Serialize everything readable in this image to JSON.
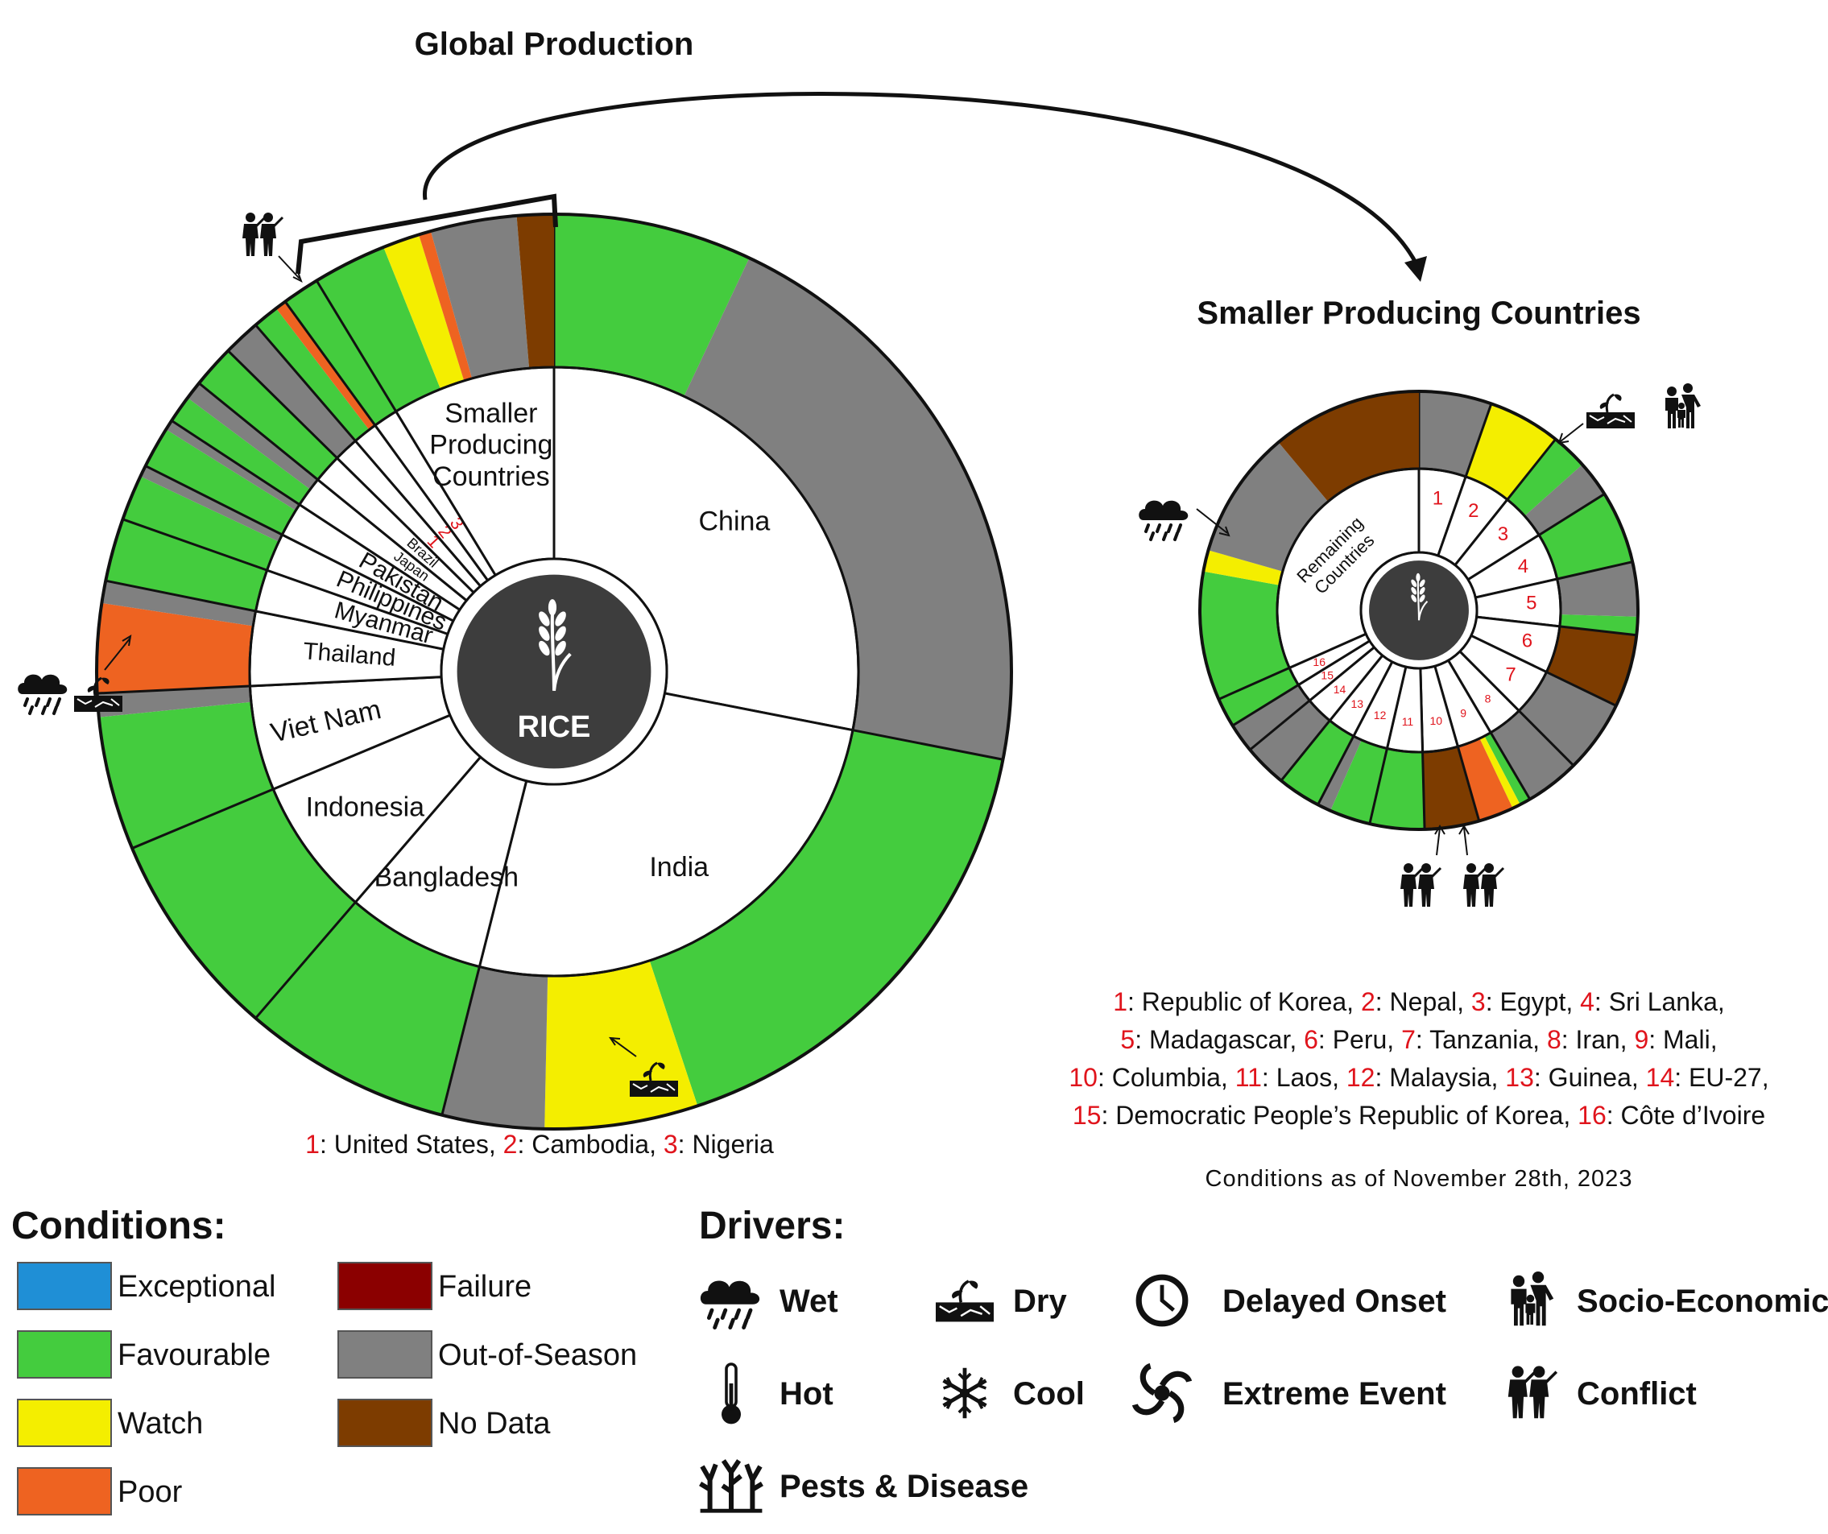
{
  "titles": {
    "global": "Global Production",
    "smaller": "Smaller Producing Countries",
    "center_label": "RICE",
    "date_note": "Conditions as of November 28th, 2023"
  },
  "colors": {
    "Exceptional": "#1f8fd6",
    "Favourable": "#44cc3e",
    "Watch": "#f4ee00",
    "Poor": "#ee6321",
    "Failure": "#8b0000",
    "Out-of-Season": "#808080",
    "No Data": "#7d3c00",
    "hub": "#3d3d3d"
  },
  "chart_data": [
    {
      "type": "pie",
      "name": "global",
      "segments": [
        {
          "label": "China",
          "share": 27.8,
          "conditions": [
            [
              "Favourable",
              0.25
            ],
            [
              "Out-of-Season",
              0.75
            ]
          ]
        },
        {
          "label": "India",
          "share": 25.6,
          "conditions": [
            [
              "Favourable",
              0.56
            ],
            [
              "Watch",
              0.18
            ],
            [
              "Out-of-Season",
              0.12
            ]
          ],
          "driver": "Dry"
        },
        {
          "label": "Bangladesh",
          "share": 7.3,
          "conditions": [
            [
              "Favourable",
              1.0
            ]
          ]
        },
        {
          "label": "Indonesia",
          "share": 7.3,
          "conditions": [
            [
              "Favourable",
              1.0
            ]
          ]
        },
        {
          "label": "Viet Nam",
          "share": 5.5,
          "conditions": [
            [
              "Favourable",
              0.85
            ],
            [
              "Out-of-Season",
              0.15
            ]
          ],
          "driver": "Wet, Dry"
        },
        {
          "label": "Thailand",
          "share": 3.9,
          "conditions": [
            [
              "Poor",
              0.8
            ],
            [
              "Out-of-Season",
              0.2
            ]
          ]
        },
        {
          "label": "Myanmar",
          "share": 2.2,
          "conditions": [
            [
              "Favourable",
              1.0
            ]
          ]
        },
        {
          "label": "Philippines",
          "share": 2.0,
          "conditions": [
            [
              "Favourable",
              0.8
            ],
            [
              "Out-of-Season",
              0.2
            ]
          ]
        },
        {
          "label": "Pakistan",
          "share": 1.8,
          "conditions": [
            [
              "Favourable",
              0.8
            ],
            [
              "Out-of-Season",
              0.2
            ]
          ]
        },
        {
          "label": "Japan",
          "share": 1.6,
          "conditions": [
            [
              "Favourable",
              0.6
            ],
            [
              "Out-of-Season",
              0.4
            ]
          ]
        },
        {
          "label": "Brazil",
          "share": 1.5,
          "conditions": [
            [
              "Favourable",
              1.0
            ]
          ]
        },
        {
          "label": "1",
          "share": 1.3,
          "conditions": [
            [
              "Out-of-Season",
              1.0
            ]
          ]
        },
        {
          "label": "2",
          "share": 1.3,
          "conditions": [
            [
              "Favourable",
              0.7
            ],
            [
              "Poor",
              0.3
            ]
          ],
          "driver": "Conflict"
        },
        {
          "label": "3",
          "share": 1.3,
          "conditions": [
            [
              "Favourable",
              1.0
            ]
          ]
        },
        {
          "label": "Smaller Producing Countries",
          "share": 8.6,
          "conditions": [
            [
              "Favourable",
              0.3
            ],
            [
              "Watch",
              0.15
            ],
            [
              "Poor",
              0.05
            ],
            [
              "Out-of-Season",
              0.35
            ],
            [
              "No Data",
              0.15
            ]
          ]
        }
      ]
    },
    {
      "type": "pie",
      "name": "smaller",
      "segments": [
        {
          "label": "1",
          "share": 5.2,
          "conditions": [
            [
              "Out-of-Season",
              1.0
            ]
          ]
        },
        {
          "label": "2",
          "share": 5.2,
          "conditions": [
            [
              "Watch",
              1.0
            ]
          ],
          "driver": "Dry, Socio-Economic"
        },
        {
          "label": "3",
          "share": 5.2,
          "conditions": [
            [
              "Favourable",
              0.5
            ],
            [
              "Out-of-Season",
              0.5
            ]
          ]
        },
        {
          "label": "4",
          "share": 5.2,
          "conditions": [
            [
              "Favourable",
              1.0
            ]
          ]
        },
        {
          "label": "5",
          "share": 5.2,
          "conditions": [
            [
              "Out-of-Season",
              0.75
            ],
            [
              "Favourable",
              0.25
            ]
          ]
        },
        {
          "label": "6",
          "share": 5.2,
          "conditions": [
            [
              "No Data",
              1.0
            ]
          ]
        },
        {
          "label": "7",
          "share": 5.2,
          "conditions": [
            [
              "Out-of-Season",
              1.0
            ]
          ]
        },
        {
          "label": "8",
          "share": 3.9,
          "conditions": [
            [
              "Out-of-Season",
              1.0
            ]
          ]
        },
        {
          "label": "9",
          "share": 3.9,
          "conditions": [
            [
              "Favourable",
              0.2
            ],
            [
              "Watch",
              0.15
            ],
            [
              "Poor",
              0.65
            ]
          ],
          "driver": "Conflict"
        },
        {
          "label": "10",
          "share": 3.9,
          "conditions": [
            [
              "No Data",
              1.0
            ]
          ]
        },
        {
          "label": "11",
          "share": 3.9,
          "conditions": [
            [
              "Favourable",
              1.0
            ]
          ]
        },
        {
          "label": "12",
          "share": 3.9,
          "conditions": [
            [
              "Favourable",
              0.75
            ],
            [
              "Out-of-Season",
              0.25
            ]
          ]
        },
        {
          "label": "13",
          "share": 3.1,
          "conditions": [
            [
              "Favourable",
              1.0
            ]
          ]
        },
        {
          "label": "14",
          "share": 3.1,
          "conditions": [
            [
              "Out-of-Season",
              1.0
            ]
          ]
        },
        {
          "label": "15",
          "share": 2.1,
          "conditions": [
            [
              "Out-of-Season",
              1.0
            ]
          ]
        },
        {
          "label": "16",
          "share": 2.1,
          "conditions": [
            [
              "Favourable",
              1.0
            ]
          ]
        },
        {
          "label": "Remaining Countries",
          "share": 30.7,
          "conditions": [
            [
              "Favourable",
              0.3
            ],
            [
              "Watch",
              0.05
            ],
            [
              "Out-of-Season",
              0.3
            ],
            [
              "No Data",
              0.35
            ]
          ],
          "driver": "Wet"
        }
      ]
    }
  ],
  "legend_global": [
    {
      "num": "1",
      "text": ": United States, "
    },
    {
      "num": "2",
      "text": ": Cambodia, "
    },
    {
      "num": "3",
      "text": ": Nigeria"
    }
  ],
  "legend_smaller_lines": [
    [
      {
        "num": "1",
        "text": ": Republic of Korea, "
      },
      {
        "num": "2",
        "text": ": Nepal, "
      },
      {
        "num": "3",
        "text": ": Egypt, "
      },
      {
        "num": "4",
        "text": ": Sri Lanka,"
      }
    ],
    [
      {
        "num": "5",
        "text": ": Madagascar, "
      },
      {
        "num": "6",
        "text": ": Peru, "
      },
      {
        "num": "7",
        "text": ": Tanzania, "
      },
      {
        "num": "8",
        "text": ": Iran, "
      },
      {
        "num": "9",
        "text": ": Mali,"
      }
    ],
    [
      {
        "num": "10",
        "text": ": Columbia, "
      },
      {
        "num": "11",
        "text": ": Laos, "
      },
      {
        "num": "12",
        "text": ": Malaysia, "
      },
      {
        "num": "13",
        "text": ": Guinea, "
      },
      {
        "num": "14",
        "text": ": EU-27,"
      }
    ],
    [
      {
        "num": "15",
        "text": ": Democratic People’s Republic of Korea, "
      },
      {
        "num": "16",
        "text": ": Côte d’Ivoire"
      }
    ]
  ],
  "conditions_legend": {
    "title": "Conditions:",
    "items": [
      "Exceptional",
      "Favourable",
      "Watch",
      "Poor",
      "Failure",
      "Out-of-Season",
      "No Data"
    ]
  },
  "drivers_legend": {
    "title": "Drivers:",
    "items": [
      {
        "label": "Wet",
        "icon": "cloud-rain-icon"
      },
      {
        "label": "Dry",
        "icon": "dry-soil-icon"
      },
      {
        "label": "Delayed Onset",
        "icon": "clock-icon"
      },
      {
        "label": "Socio-Economic",
        "icon": "people-icon"
      },
      {
        "label": "Hot",
        "icon": "thermometer-icon"
      },
      {
        "label": "Cool",
        "icon": "snowflake-icon"
      },
      {
        "label": "Extreme Event",
        "icon": "cyclone-icon"
      },
      {
        "label": "Conflict",
        "icon": "soldiers-icon"
      },
      {
        "label": "Pests & Disease",
        "icon": "dead-trees-icon"
      }
    ]
  }
}
